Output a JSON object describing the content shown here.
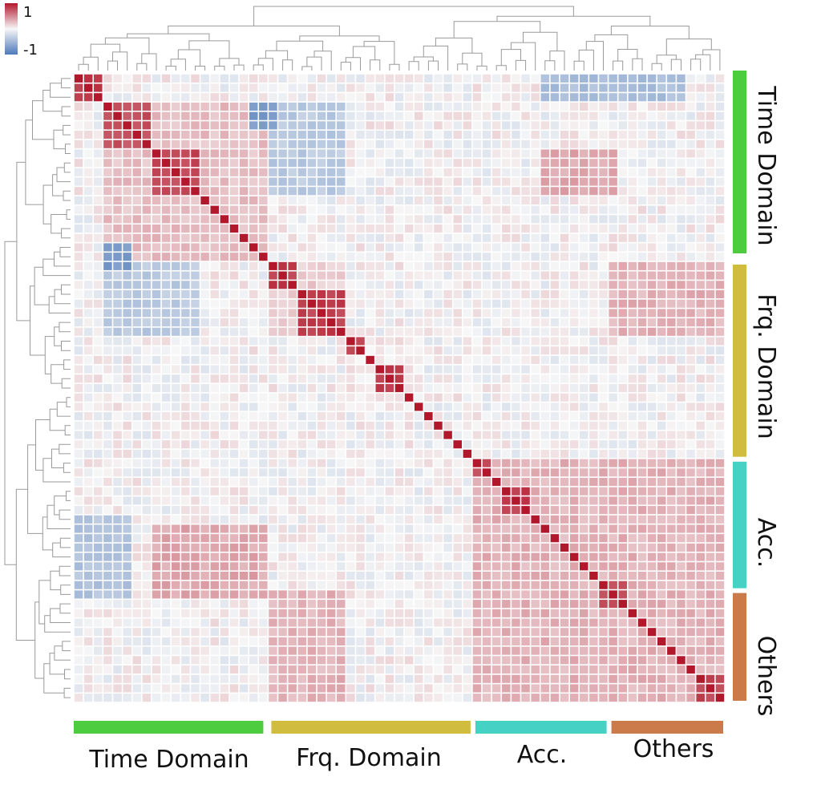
{
  "chart_data": {
    "type": "heatmap",
    "title": "",
    "xlabel": "",
    "ylabel": "",
    "colorbar": {
      "max_label": "1",
      "min_label": "-1",
      "range": [
        -1,
        1
      ],
      "colormap": "blue-white-red"
    },
    "group_colors": {
      "Time Domain": "#4ecc3f",
      "Frq. Domain": "#d0bd40",
      "Acc.": "#45d1c4",
      "Others": "#cb7a4a"
    },
    "groups": [
      {
        "name": "Time Domain",
        "start": 0,
        "end": 19
      },
      {
        "name": "Frq. Domain",
        "start": 20,
        "end": 40
      },
      {
        "name": "Acc.",
        "start": 41,
        "end": 54
      },
      {
        "name": "Others",
        "start": 55,
        "end": 66
      }
    ],
    "n_features": 67,
    "dendrogram": {
      "top": true,
      "left": true
    },
    "grid": true,
    "correlation_blocks": [
      {
        "rows": [
          0,
          2
        ],
        "cols": [
          0,
          2
        ],
        "value": 0.85
      },
      {
        "rows": [
          3,
          7
        ],
        "cols": [
          3,
          7
        ],
        "value": 0.7
      },
      {
        "rows": [
          8,
          12
        ],
        "cols": [
          8,
          12
        ],
        "value": 0.75
      },
      {
        "rows": [
          20,
          22
        ],
        "cols": [
          20,
          22
        ],
        "value": 0.8
      },
      {
        "rows": [
          23,
          27
        ],
        "cols": [
          23,
          27
        ],
        "value": 0.8
      },
      {
        "rows": [
          28,
          29
        ],
        "cols": [
          28,
          29
        ],
        "value": 0.75
      },
      {
        "rows": [
          31,
          33
        ],
        "cols": [
          31,
          33
        ],
        "value": 0.8
      },
      {
        "rows": [
          41,
          42
        ],
        "cols": [
          41,
          42
        ],
        "value": 0.75
      },
      {
        "rows": [
          44,
          46
        ],
        "cols": [
          44,
          46
        ],
        "value": 0.8
      },
      {
        "rows": [
          54,
          56
        ],
        "cols": [
          54,
          56
        ],
        "value": 0.75
      },
      {
        "rows": [
          64,
          66
        ],
        "cols": [
          64,
          66
        ],
        "value": 0.75
      },
      {
        "rows": [
          3,
          19
        ],
        "cols": [
          3,
          19
        ],
        "value": 0.2
      },
      {
        "rows": [
          41,
          66
        ],
        "cols": [
          41,
          66
        ],
        "value": 0.25
      },
      {
        "rows": [
          20,
          27
        ],
        "cols": [
          20,
          27
        ],
        "value": 0.15
      },
      {
        "rows": [
          0,
          2
        ],
        "cols": [
          48,
          62
        ],
        "value": -0.4
      },
      {
        "rows": [
          3,
          5
        ],
        "cols": [
          18,
          20
        ],
        "value": -0.7
      },
      {
        "rows": [
          18,
          20
        ],
        "cols": [
          3,
          5
        ],
        "value": -0.7
      },
      {
        "rows": [
          3,
          12
        ],
        "cols": [
          20,
          27
        ],
        "value": -0.3
      },
      {
        "rows": [
          20,
          27
        ],
        "cols": [
          3,
          12
        ],
        "value": -0.3
      },
      {
        "rows": [
          47,
          55
        ],
        "cols": [
          0,
          5
        ],
        "value": -0.35
      },
      {
        "rows": [
          8,
          12
        ],
        "cols": [
          48,
          55
        ],
        "value": 0.3
      },
      {
        "rows": [
          48,
          55
        ],
        "cols": [
          8,
          19
        ],
        "value": 0.3
      },
      {
        "rows": [
          20,
          27
        ],
        "cols": [
          55,
          66
        ],
        "value": 0.25
      },
      {
        "rows": [
          55,
          66
        ],
        "cols": [
          20,
          27
        ],
        "value": 0.25
      }
    ],
    "group_labels": {
      "Time Domain": "Time Domain",
      "Frq. Domain": "Frq. Domain",
      "Acc.": "Acc.",
      "Others": "Others"
    }
  }
}
